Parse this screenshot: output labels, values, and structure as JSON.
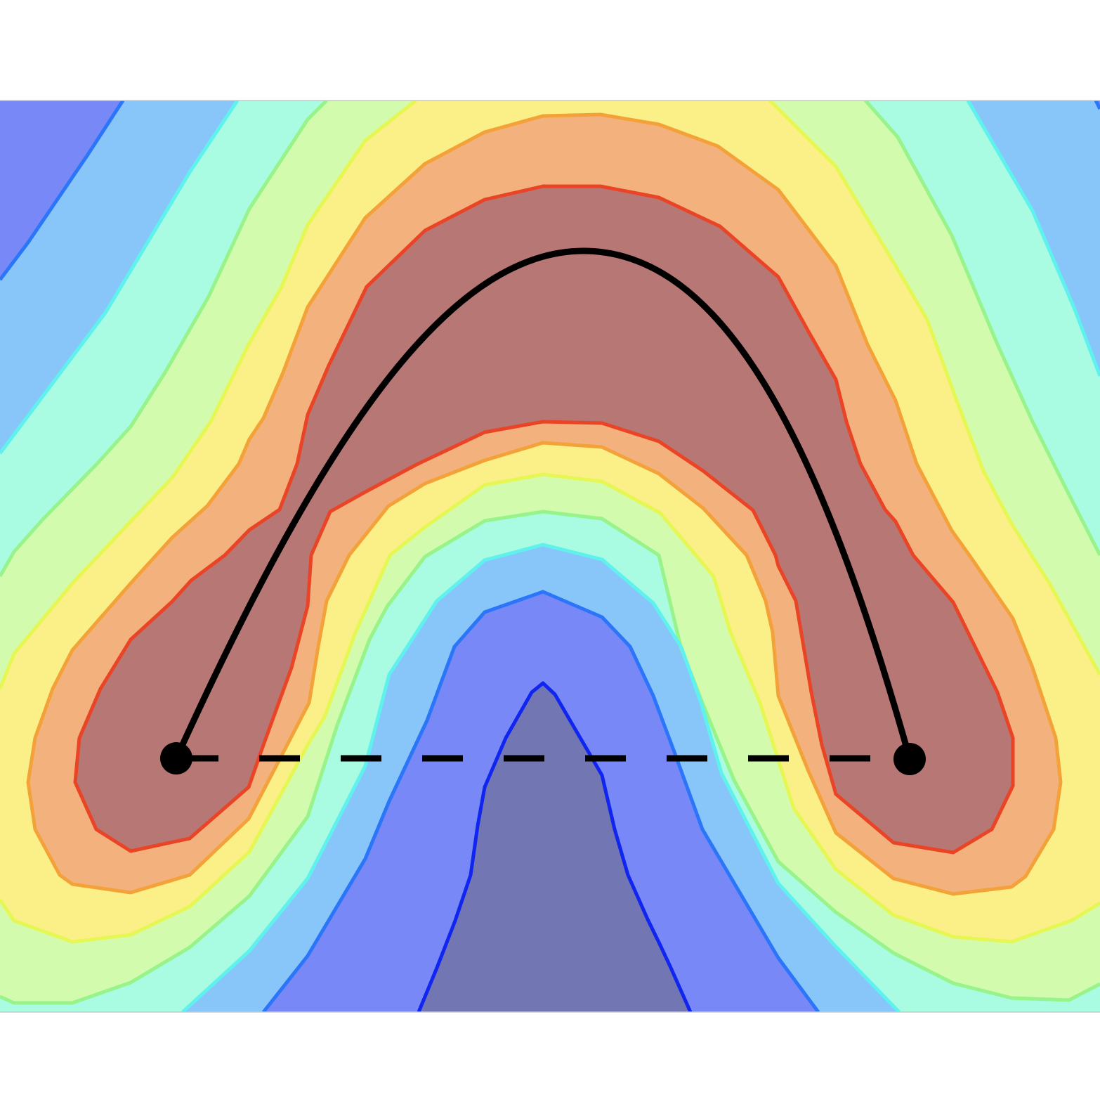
{
  "diagram": {
    "band_colors": {
      "deep_blue": "#7276b3",
      "blue": "#7889f7",
      "light_blue": "#88c6fa",
      "cyan": "#a9fbe1",
      "light_green": "#d3fbae",
      "yellow": "#fbef88",
      "orange": "#f3b17e",
      "dark_red": "#b77775"
    },
    "contour_line_colors": {
      "deep_blue": "#1025f0",
      "blue": "#2a75f8",
      "cyan": "#5ef1ee",
      "green": "#97f38a",
      "yellow": "#e6f753",
      "orange": "#f3a23a",
      "red": "#ea4426"
    },
    "path_color": "#000000",
    "endpoint_names": [
      "start-point",
      "end-point"
    ]
  }
}
